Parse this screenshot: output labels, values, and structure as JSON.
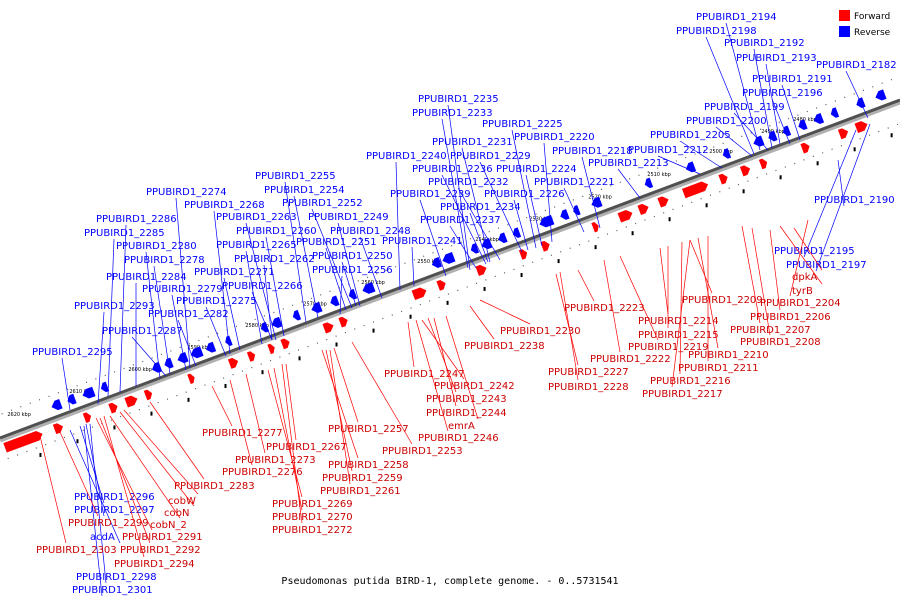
{
  "caption": "Pseudomonas putida BIRD-1, complete genome. - 0..5731541",
  "legend": [
    {
      "label": "Forward",
      "color": "#ff0000"
    },
    {
      "label": "Reverse",
      "color": "#0000ff"
    }
  ],
  "ticks": [
    "2480 kbp",
    "2490 kbp",
    "2500 kbp",
    "2510 kbp",
    "2520 kbp",
    "2530 kbp",
    "2540 kbp",
    "2550 kbp",
    "2560 kbp",
    "2570 kbp",
    "2580 kbp",
    "2590 kbp",
    "2600 kbp",
    "2610 kbp",
    "2620 kbp"
  ],
  "reverse_labels": [
    "PPUBIRD1_2194",
    "PPUBIRD1_2198",
    "PPUBIRD1_2192",
    "PPUBIRD1_2193",
    "PPUBIRD1_2182",
    "PPUBIRD1_2191",
    "PPUBIRD1_2196",
    "PPUBIRD1_2199",
    "PPUBIRD1_2200",
    "PPUBIRD1_2205",
    "PPUBIRD1_2212",
    "PPUBIRD1_2213",
    "PPUBIRD1_2235",
    "PPUBIRD1_2233",
    "PPUBIRD1_2225",
    "PPUBIRD1_2220",
    "PPUBIRD1_2231",
    "PPUBIRD1_2218",
    "PPUBIRD1_2240",
    "PPUBIRD1_2229",
    "PPUBIRD1_2236",
    "PPUBIRD1_2224",
    "PPUBIRD1_2232",
    "PPUBIRD1_2221",
    "PPUBIRD1_2239",
    "PPUBIRD1_2226",
    "PPUBIRD1_2234",
    "PPUBIRD1_2237",
    "PPUBIRD1_2241",
    "PPUBIRD1_2255",
    "PPUBIRD1_2254",
    "PPUBIRD1_2274",
    "PPUBIRD1_2252",
    "PPUBIRD1_2268",
    "PPUBIRD1_2263",
    "PPUBIRD1_2249",
    "PPUBIRD1_2286",
    "PPUBIRD1_2260",
    "PPUBIRD1_2248",
    "PPUBIRD1_2285",
    "PPUBIRD1_2251",
    "PPUBIRD1_2265",
    "PPUBIRD1_2280",
    "PPUBIRD1_2250",
    "PPUBIRD1_2262",
    "PPUBIRD1_2278",
    "PPUBIRD1_2271",
    "PPUBIRD1_2256",
    "PPUBIRD1_2284",
    "PPUBIRD1_2266",
    "PPUBIRD1_2279",
    "PPUBIRD1_2275",
    "PPUBIRD1_2293",
    "PPUBIRD1_2282",
    "PPUBIRD1_2287",
    "PPUBIRD1_2295",
    "PPUBIRD1_2190",
    "PPUBIRD1_2195",
    "PPUBIRD1_2197",
    "PPUBIRD1_2296",
    "PPUBIRD1_2297",
    "acdA",
    "PPUBIRD1_2298",
    "PPUBIRD1_2301"
  ],
  "forward_labels": [
    "dpkA",
    "tyrB",
    "PPUBIRD1_2209",
    "PPUBIRD1_2204",
    "PPUBIRD1_2206",
    "PPUBIRD1_2223",
    "PPUBIRD1_2214",
    "PPUBIRD1_2207",
    "PPUBIRD1_2215",
    "PPUBIRD1_2208",
    "PPUBIRD1_2219",
    "PPUBIRD1_2210",
    "PPUBIRD1_2222",
    "PPUBIRD1_2211",
    "PPUBIRD1_2227",
    "PPUBIRD1_2216",
    "PPUBIRD1_2228",
    "PPUBIRD1_2217",
    "PPUBIRD1_2230",
    "PPUBIRD1_2238",
    "PPUBIRD1_2247",
    "PPUBIRD1_2242",
    "PPUBIRD1_2243",
    "PPUBIRD1_2244",
    "emrA",
    "PPUBIRD1_2246",
    "PPUBIRD1_2257",
    "PPUBIRD1_2253",
    "PPUBIRD1_2277",
    "PPUBIRD1_2267",
    "PPUBIRD1_2273",
    "PPUBIRD1_2258",
    "PPUBIRD1_2276",
    "PPUBIRD1_2259",
    "PPUBIRD1_2283",
    "PPUBIRD1_2261",
    "PPUBIRD1_2269",
    "PPUBIRD1_2270",
    "PPUBIRD1_2272",
    "cobW",
    "cobN",
    "PPUBIRD1_2299",
    "cobN_2",
    "PPUBIRD1_2291",
    "PPUBIRD1_2303",
    "PPUBIRD1_2292",
    "PPUBIRD1_2294"
  ]
}
